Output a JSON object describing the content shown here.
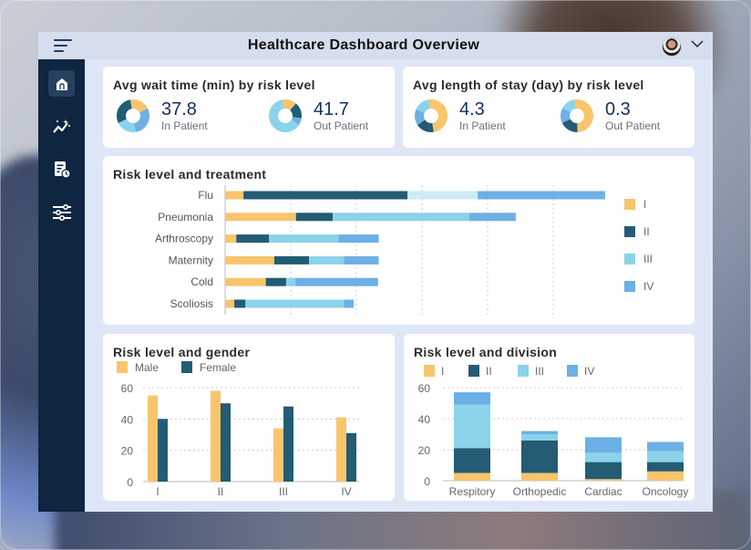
{
  "app": {
    "title": "Healthcare Dashboard Overview"
  },
  "colors": {
    "I": "#f8c56d",
    "II": "#235c74",
    "III": "#8ad3ea",
    "IV": "#6cb0e6",
    "III_light": "#cdebf7",
    "male": "#f8c56d",
    "female": "#235c74",
    "sidebar": "#0f2540",
    "kpi_value": "#12305a"
  },
  "sidebar": {
    "items": [
      {
        "icon": "home-icon",
        "active": true
      },
      {
        "icon": "analytics-icon",
        "active": false
      },
      {
        "icon": "report-clock-icon",
        "active": false
      },
      {
        "icon": "sliders-icon",
        "active": false
      }
    ]
  },
  "kpis": {
    "wait": {
      "title": "Avg wait time (min) by risk level",
      "items": [
        {
          "value": "37.8",
          "label": "In Patient",
          "shares": [
            0.2,
            0.3,
            0.2,
            0.3
          ],
          "order": [
            "I",
            "IV",
            "III",
            "II"
          ]
        },
        {
          "value": "41.7",
          "label": "Out Patient",
          "shares": [
            0.14,
            0.16,
            0.07,
            0.63
          ],
          "order": [
            "I",
            "II",
            "IV",
            "III"
          ]
        }
      ]
    },
    "stay": {
      "title": "Avg length of stay (day) by risk level",
      "items": [
        {
          "value": "4.3",
          "label": "In Patient",
          "shares": [
            0.5,
            0.18,
            0.16,
            0.16
          ],
          "order": [
            "I",
            "II",
            "IV",
            "III"
          ]
        },
        {
          "value": "0.3",
          "label": "Out Patient",
          "shares": [
            0.52,
            0.18,
            0.15,
            0.15
          ],
          "order": [
            "I",
            "II",
            "IV",
            "III"
          ]
        }
      ]
    }
  },
  "chart_data": [
    {
      "type": "bar",
      "orientation": "horizontal",
      "stacked": true,
      "title": "Risk level and treatment",
      "categories": [
        "Flu",
        "Pneumonia",
        "Arthroscopy",
        "Maternity",
        "Cold",
        "Scoliosis"
      ],
      "series": [
        {
          "name": "I",
          "values": [
            2.8,
            10.8,
            1.7,
            7.5,
            6.2,
            1.4
          ]
        },
        {
          "name": "II",
          "values": [
            25.0,
            5.6,
            5.0,
            5.3,
            3.1,
            1.7
          ]
        },
        {
          "name": "III",
          "values": [
            10.7,
            20.8,
            10.6,
            5.3,
            1.4,
            15.0
          ]
        },
        {
          "name": "IV",
          "values": [
            19.4,
            7.1,
            6.1,
            5.3,
            12.6,
            1.5
          ]
        }
      ],
      "xlim": [
        0,
        60
      ],
      "grid": true,
      "legend": "right",
      "xlabel": "",
      "ylabel": ""
    },
    {
      "type": "bar",
      "stacked": false,
      "title": "Risk level and gender",
      "categories": [
        "I",
        "II",
        "III",
        "IV"
      ],
      "series": [
        {
          "name": "Male",
          "values": [
            55,
            58,
            34,
            41
          ]
        },
        {
          "name": "Female",
          "values": [
            40,
            50,
            48,
            31
          ]
        }
      ],
      "ylim": [
        0,
        60
      ],
      "yticks": [
        0,
        20,
        40,
        60
      ],
      "grid": true,
      "legend": "top-left",
      "xlabel": "",
      "ylabel": ""
    },
    {
      "type": "bar",
      "stacked": true,
      "title": "Risk level and division",
      "categories": [
        "Respitory",
        "Orthopedic",
        "Cardiac",
        "Oncology"
      ],
      "series": [
        {
          "name": "I",
          "values": [
            5,
            5,
            1,
            6
          ]
        },
        {
          "name": "II",
          "values": [
            16,
            21,
            11,
            6
          ]
        },
        {
          "name": "III",
          "values": [
            28,
            4,
            6,
            7
          ]
        },
        {
          "name": "IV",
          "values": [
            8,
            2,
            10,
            6
          ]
        }
      ],
      "ylim": [
        0,
        60
      ],
      "yticks": [
        0,
        20,
        40,
        60
      ],
      "grid": true,
      "legend": "top-left",
      "xlabel": "",
      "ylabel": ""
    }
  ]
}
